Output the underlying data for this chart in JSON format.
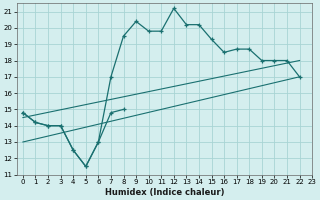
{
  "xlabel": "Humidex (Indice chaleur)",
  "bg_color": "#d4eeee",
  "grid_color": "#a8d4d4",
  "line_color": "#1a7070",
  "xlim": [
    -0.5,
    23
  ],
  "ylim": [
    11,
    21.5
  ],
  "xticks": [
    0,
    1,
    2,
    3,
    4,
    5,
    6,
    7,
    8,
    9,
    10,
    11,
    12,
    13,
    14,
    15,
    16,
    17,
    18,
    19,
    20,
    21,
    22,
    23
  ],
  "yticks": [
    11,
    12,
    13,
    14,
    15,
    16,
    17,
    18,
    19,
    20,
    21
  ],
  "line1_x": [
    0,
    1,
    2,
    3,
    4,
    5,
    6,
    7,
    8,
    9,
    10,
    11,
    12,
    13,
    14,
    15,
    16,
    17,
    18,
    19,
    20,
    21,
    22
  ],
  "line1_y": [
    14.8,
    14.2,
    14.0,
    14.0,
    12.5,
    11.5,
    13.0,
    17.0,
    19.5,
    20.4,
    19.8,
    19.8,
    21.2,
    20.2,
    20.2,
    19.3,
    18.5,
    18.7,
    18.7,
    18.0,
    18.0,
    18.0,
    17.0
  ],
  "line2_x": [
    0,
    1,
    2,
    3,
    4,
    5,
    6,
    7,
    8
  ],
  "line2_y": [
    14.8,
    14.2,
    14.0,
    14.0,
    12.5,
    11.5,
    13.0,
    14.8,
    15.0
  ],
  "line3_x": [
    0,
    22
  ],
  "line3_y": [
    13.0,
    17.0
  ],
  "line4_x": [
    0,
    22
  ],
  "line4_y": [
    14.5,
    18.0
  ]
}
